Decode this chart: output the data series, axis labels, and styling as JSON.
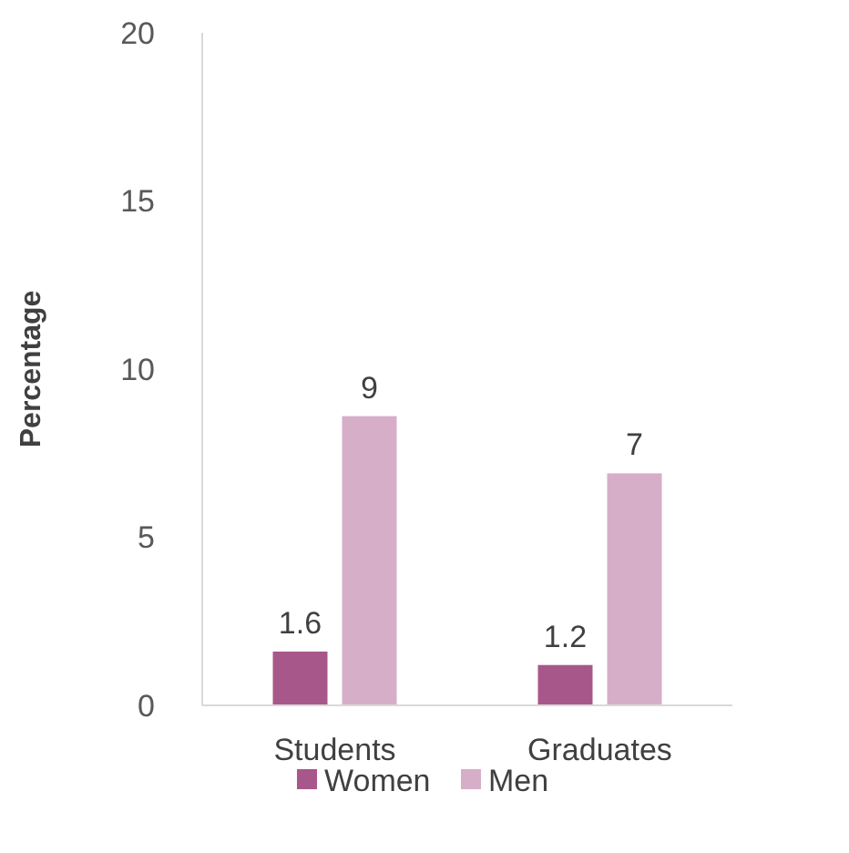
{
  "chart_data": {
    "type": "bar",
    "ylabel": "Percentage",
    "categories": [
      "Students",
      "Graduates"
    ],
    "series": [
      {
        "name": "Women",
        "color": "#a8578a",
        "values": [
          1.6,
          1.2
        ],
        "value_labels": [
          "1.6",
          "1.2"
        ]
      },
      {
        "name": "Men",
        "color": "#d6aec8",
        "values": [
          8.6,
          6.9
        ],
        "value_labels": [
          "9",
          "7"
        ]
      }
    ],
    "ylim": [
      0,
      20
    ],
    "yticks": [
      0,
      5,
      10,
      15,
      20
    ],
    "grid": false,
    "legend": "bottom"
  }
}
